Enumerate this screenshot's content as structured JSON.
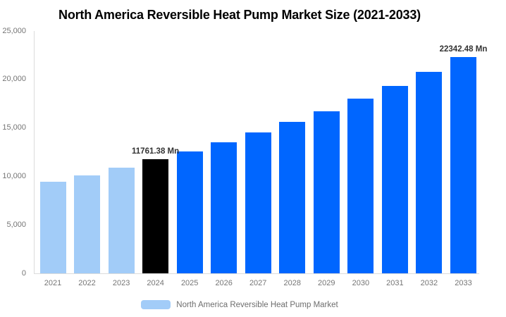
{
  "title": "North America Reversible Heat Pump Market Size (2021-2033)",
  "legend": {
    "label": "North America Reversible Heat Pump Market"
  },
  "colors": {
    "bar_historical": "#a2ccf8",
    "bar_current": "#000000",
    "bar_forecast": "#0066ff",
    "axis_line": "#dcdcdc",
    "tick_text": "#757575",
    "value_label_text": "#333333",
    "title_text": "#000000",
    "legend_text": "#6e6e6e",
    "background": "#ffffff"
  },
  "chart_data": {
    "type": "bar",
    "title": "North America Reversible Heat Pump Market Size (2021-2033)",
    "xlabel": "",
    "ylabel": "",
    "unit": "Mn",
    "ylim": [
      0,
      25000
    ],
    "grid": false,
    "legend_position": "bottom",
    "categories": [
      "2021",
      "2022",
      "2023",
      "2024",
      "2025",
      "2026",
      "2027",
      "2028",
      "2029",
      "2030",
      "2031",
      "2032",
      "2033"
    ],
    "values": [
      9450,
      10100,
      10940,
      11761.38,
      12600,
      13550,
      14550,
      15600,
      16750,
      18040,
      19360,
      20800,
      22342.48
    ],
    "bar_roles": [
      "historical",
      "historical",
      "historical",
      "current",
      "forecast",
      "forecast",
      "forecast",
      "forecast",
      "forecast",
      "forecast",
      "forecast",
      "forecast",
      "forecast"
    ],
    "y_ticks": [
      {
        "value": 25000,
        "label": "25,000"
      },
      {
        "value": 20000,
        "label": "20,000"
      },
      {
        "value": 15000,
        "label": "15,000"
      },
      {
        "value": 10000,
        "label": "10,000"
      },
      {
        "value": 5000,
        "label": "5,000"
      },
      {
        "value": 0,
        "label": "0"
      }
    ],
    "data_labels": [
      {
        "category": "2024",
        "text": "11761.38 Mn"
      },
      {
        "category": "2033",
        "text": "22342.48 Mn"
      }
    ],
    "series": [
      {
        "name": "North America Reversible Heat Pump Market",
        "values": [
          9450,
          10100,
          10940,
          11761.38,
          12600,
          13550,
          14550,
          15600,
          16750,
          18040,
          19360,
          20800,
          22342.48
        ]
      }
    ]
  }
}
